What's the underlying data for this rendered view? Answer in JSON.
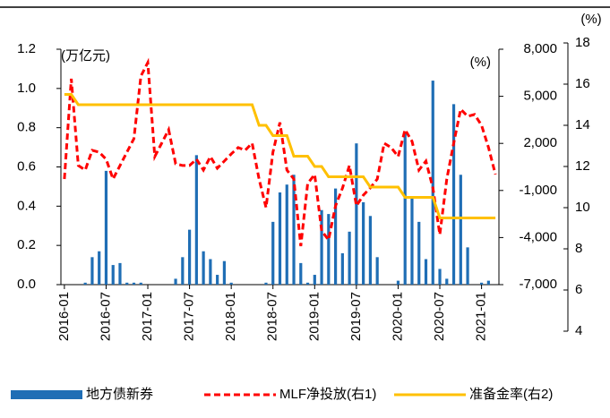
{
  "chart_data": {
    "type": "combo",
    "y_label": "(万亿元)",
    "y2_label": "(%)",
    "y3_label": "(%)",
    "categories": [
      "2016-01",
      null,
      null,
      null,
      null,
      null,
      "2016-07",
      null,
      null,
      null,
      null,
      null,
      "2017-01",
      null,
      null,
      null,
      null,
      null,
      "2017-07",
      null,
      null,
      null,
      null,
      null,
      "2018-01",
      null,
      null,
      null,
      null,
      null,
      "2018-07",
      null,
      null,
      null,
      null,
      null,
      "2019-01",
      null,
      null,
      null,
      null,
      null,
      "2019-07",
      null,
      null,
      null,
      null,
      null,
      "2020-01",
      null,
      null,
      null,
      null,
      null,
      "2020-07",
      null,
      null,
      null,
      null,
      null,
      "2021-01",
      null,
      null
    ],
    "ylim": [
      0,
      1.2
    ],
    "yticks": [
      {
        "value": 0,
        "label": "0.0"
      },
      0.2,
      0.4,
      0.6,
      0.8,
      {
        "value": 1,
        "label": "1.0"
      },
      1.2
    ],
    "y2lim": [
      -7000,
      8000
    ],
    "y2ticks": [
      {
        "value": -7000,
        "label": "-7,000"
      },
      {
        "value": -4000,
        "label": "-4,000"
      },
      {
        "value": -1000,
        "label": "-1,000"
      },
      {
        "value": 2000,
        "label": "2,000"
      },
      {
        "value": 5000,
        "label": "5,000"
      },
      {
        "value": 8000,
        "label": "8,000"
      }
    ],
    "y3lim": [
      4,
      18
    ],
    "y3ticks": [
      4,
      6,
      8,
      10,
      12,
      14,
      16,
      18
    ],
    "series": [
      {
        "name": "地方债新券",
        "type": "bar",
        "axis": "y",
        "color": "#1f6eb5",
        "values": [
          0,
          0,
          0,
          0.01,
          0.14,
          0.17,
          0.58,
          0.1,
          0.11,
          0.01,
          0.01,
          0.01,
          0,
          0,
          0,
          0,
          0.03,
          0.14,
          0.28,
          0.66,
          0.17,
          0.13,
          0.05,
          0.12,
          0.01,
          0,
          0,
          0,
          0,
          0.01,
          0.32,
          0.47,
          0.51,
          0.56,
          0.11,
          0.01,
          0.05,
          0.38,
          0.36,
          0.49,
          0.16,
          0.27,
          0.72,
          0.42,
          0.35,
          0.14,
          0,
          0,
          0.02,
          0.78,
          0.44,
          0.32,
          0.13,
          1.04,
          0.08,
          0.03,
          0.92,
          0.56,
          0.19,
          0,
          0.01,
          0.02,
          0
        ]
      },
      {
        "name": "MLF净投放(右1)",
        "type": "line",
        "axis": "y2",
        "color": "#ff0000",
        "dashed": true,
        "values": [
          -270,
          6120,
          590,
          300,
          1560,
          1440,
          990,
          -270,
          590,
          1440,
          2300,
          6290,
          7150,
          1160,
          2010,
          2870,
          700,
          590,
          590,
          990,
          300,
          1160,
          420,
          870,
          1330,
          1730,
          1560,
          2010,
          -270,
          -2090,
          1440,
          3330,
          300,
          -270,
          -4550,
          -550,
          20,
          -3580,
          -4150,
          -1980,
          -840,
          590,
          -1980,
          -1300,
          -840,
          -270,
          2010,
          1730,
          1160,
          2870,
          2130,
          300,
          870,
          -840,
          -3810,
          -270,
          2010,
          4180,
          3720,
          3840,
          3150,
          1730,
          20
        ]
      },
      {
        "name": "准备金率(右2)",
        "type": "line",
        "axis": "y3",
        "color": "#ffc000",
        "values": [
          15.5,
          15.5,
          15,
          15,
          15,
          15,
          15,
          15,
          15,
          15,
          15,
          15,
          15,
          15,
          15,
          15,
          15,
          15,
          15,
          15,
          15,
          15,
          15,
          15,
          15,
          15,
          15,
          15,
          14,
          14,
          13.5,
          13.5,
          13.5,
          12.5,
          12.5,
          12.5,
          12,
          12,
          11.5,
          11.5,
          11.5,
          11.5,
          11.5,
          11.5,
          11,
          11,
          11,
          11,
          11,
          10.5,
          10.5,
          10.5,
          10.5,
          10.5,
          9.5,
          9.5,
          9.5,
          9.5,
          9.5,
          9.5,
          9.5,
          9.5,
          9.5
        ]
      }
    ]
  }
}
